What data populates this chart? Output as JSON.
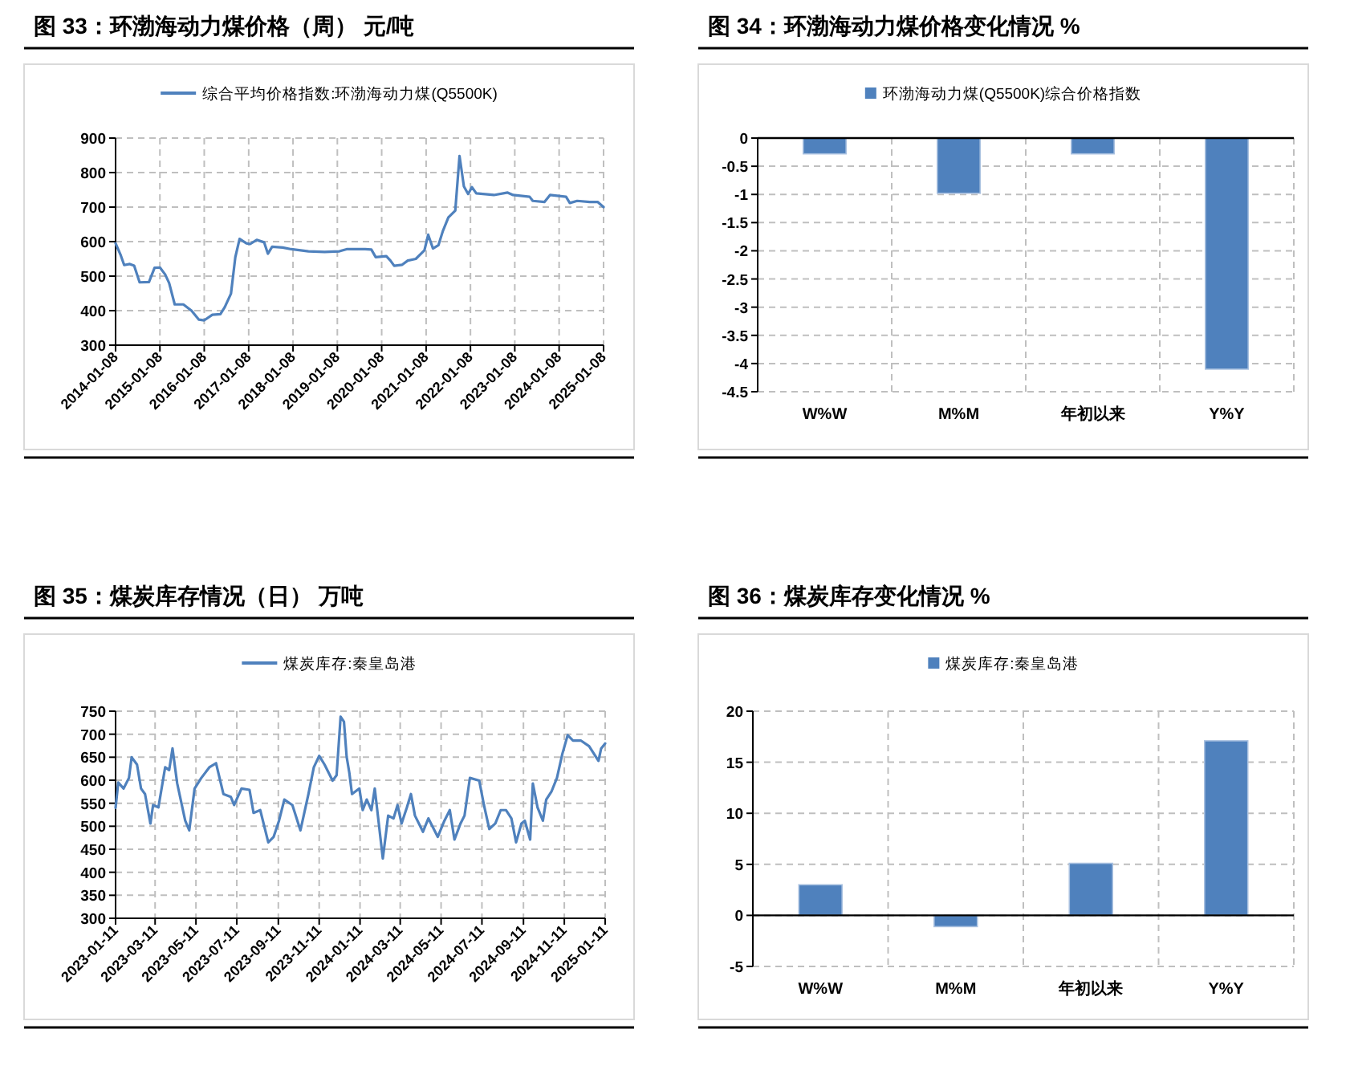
{
  "chart_data": [
    {
      "type": "line",
      "title": "图 33：环渤海动力煤价格（周） 元/吨",
      "legend": "top",
      "grid": true,
      "x": [
        "2014-01-08",
        "2014-02-20",
        "2014-03-20",
        "2014-05-05",
        "2014-06-10",
        "2014-07-25",
        "2014-10-10",
        "2014-11-25",
        "2015-01-08",
        "2015-02-20",
        "2015-03-25",
        "2015-05-10",
        "2015-07-20",
        "2015-09-25",
        "2015-11-25",
        "2016-01-08",
        "2016-03-15",
        "2016-05-20",
        "2016-06-25",
        "2016-08-15",
        "2016-09-20",
        "2016-10-25",
        "2016-12-20",
        "2017-01-20",
        "2017-03-15",
        "2017-05-15",
        "2017-06-15",
        "2017-07-20",
        "2017-10-15",
        "2017-12-25",
        "2018-05-15",
        "2018-09-25",
        "2019-01-25",
        "2019-03-25",
        "2019-08-25",
        "2019-10-15",
        "2019-11-20",
        "2020-02-15",
        "2020-03-20",
        "2020-04-20",
        "2020-06-25",
        "2020-08-10",
        "2020-10-15",
        "2020-12-25",
        "2021-01-25",
        "2021-03-05",
        "2021-04-20",
        "2021-05-25",
        "2021-07-10",
        "2021-09-05",
        "2021-10-10",
        "2021-11-15",
        "2021-12-20",
        "2022-01-20",
        "2022-02-25",
        "2022-07-20",
        "2022-11-10",
        "2022-12-25",
        "2023-05-10",
        "2023-06-05",
        "2023-09-10",
        "2023-10-25",
        "2024-03-05",
        "2024-04-05",
        "2024-06-05",
        "2024-09-15",
        "2024-11-20",
        "2025-01-08"
      ],
      "series": [
        {
          "name": "综合平均价格指数:环渤海动力煤(Q5500K)",
          "color": "#4f81bd",
          "values": [
            595,
            560,
            532,
            535,
            530,
            482,
            483,
            524,
            525,
            505,
            480,
            418,
            418,
            400,
            374,
            372,
            388,
            390,
            410,
            449,
            555,
            608,
            595,
            593,
            605,
            598,
            565,
            585,
            583,
            578,
            572,
            570,
            572,
            578,
            578,
            577,
            555,
            558,
            545,
            530,
            533,
            545,
            550,
            575,
            620,
            580,
            590,
            630,
            670,
            690,
            848,
            760,
            738,
            758,
            740,
            735,
            742,
            735,
            730,
            718,
            715,
            735,
            730,
            712,
            718,
            715,
            715,
            700
          ]
        }
      ],
      "xlim": [
        "2014-01-08",
        "2025-01-08"
      ],
      "xticks": [
        "2014-01-08",
        "2015-01-08",
        "2016-01-08",
        "2017-01-08",
        "2018-01-08",
        "2019-01-08",
        "2020-01-08",
        "2021-01-08",
        "2022-01-08",
        "2023-01-08",
        "2024-01-08",
        "2025-01-08"
      ],
      "ylim": [
        300,
        900
      ],
      "yticks": [
        300,
        400,
        500,
        600,
        700,
        800,
        900
      ]
    },
    {
      "type": "bar",
      "title": "图 34：环渤海动力煤价格变化情况 %",
      "legend": "top",
      "grid": true,
      "categories": [
        "W%W",
        "M%M",
        "年初以来",
        "Y%Y"
      ],
      "series": [
        {
          "name": "环渤海动力煤(Q5500K)综合价格指数",
          "color": "#4f81bd",
          "values": [
            -0.28,
            -0.98,
            -0.28,
            -4.1
          ]
        }
      ],
      "ylim": [
        -4.5,
        0
      ],
      "yticks": [
        -4.5,
        -4,
        -3.5,
        -3,
        -2.5,
        -2,
        -1.5,
        -1,
        -0.5,
        0
      ]
    },
    {
      "type": "line",
      "title": "图 35：煤炭库存情况（日） 万吨",
      "legend": "top",
      "grid": true,
      "x": [
        "2023-01-11",
        "2023-01-15",
        "2023-01-23",
        "2023-01-31",
        "2023-02-04",
        "2023-02-12",
        "2023-02-18",
        "2023-02-24",
        "2023-03-04",
        "2023-03-08",
        "2023-03-16",
        "2023-03-26",
        "2023-04-01",
        "2023-04-06",
        "2023-04-13",
        "2023-04-25",
        "2023-05-01",
        "2023-05-09",
        "2023-05-19",
        "2023-05-31",
        "2023-06-10",
        "2023-06-21",
        "2023-07-02",
        "2023-07-07",
        "2023-07-18",
        "2023-07-30",
        "2023-08-05",
        "2023-08-15",
        "2023-08-27",
        "2023-09-04",
        "2023-09-12",
        "2023-09-20",
        "2023-10-02",
        "2023-10-14",
        "2023-10-26",
        "2023-11-03",
        "2023-11-11",
        "2023-11-19",
        "2023-12-01",
        "2023-12-07",
        "2023-12-13",
        "2023-12-18",
        "2023-12-22",
        "2023-12-26",
        "2023-12-30",
        "2024-01-10",
        "2024-01-15",
        "2024-01-21",
        "2024-01-28",
        "2024-02-02",
        "2024-02-08",
        "2024-02-14",
        "2024-02-22",
        "2024-03-01",
        "2024-03-07",
        "2024-03-13",
        "2024-03-21",
        "2024-03-27",
        "2024-04-02",
        "2024-04-14",
        "2024-04-22",
        "2024-05-06",
        "2024-05-16",
        "2024-05-24",
        "2024-05-31",
        "2024-06-09",
        "2024-06-15",
        "2024-06-23",
        "2024-07-07",
        "2024-07-14",
        "2024-07-22",
        "2024-07-31",
        "2024-08-08",
        "2024-08-16",
        "2024-08-24",
        "2024-08-31",
        "2024-09-08",
        "2024-09-13",
        "2024-09-21",
        "2024-09-25",
        "2024-10-02",
        "2024-10-10",
        "2024-10-15",
        "2024-10-23",
        "2024-10-31",
        "2024-11-08",
        "2024-11-16",
        "2024-11-24",
        "2024-12-06",
        "2024-12-18",
        "2025-01-01",
        "2025-01-05",
        "2025-01-11"
      ],
      "series": [
        {
          "name": "煤炭库存:秦皇岛港",
          "color": "#4f81bd",
          "values": [
            540,
            595,
            582,
            605,
            650,
            634,
            582,
            570,
            506,
            546,
            541,
            628,
            622,
            669,
            593,
            512,
            491,
            582,
            605,
            628,
            637,
            570,
            564,
            546,
            582,
            579,
            529,
            535,
            465,
            477,
            512,
            558,
            546,
            491,
            570,
            628,
            653,
            634,
            599,
            611,
            738,
            727,
            651,
            616,
            570,
            582,
            535,
            558,
            535,
            582,
            506,
            430,
            523,
            517,
            546,
            506,
            541,
            570,
            523,
            488,
            517,
            477,
            512,
            535,
            471,
            506,
            523,
            605,
            599,
            546,
            494,
            506,
            535,
            535,
            517,
            465,
            506,
            512,
            471,
            593,
            541,
            512,
            558,
            576,
            605,
            657,
            698,
            686,
            686,
            674,
            642,
            669,
            680
          ]
        }
      ],
      "xlim": [
        "2023-01-11",
        "2025-01-11"
      ],
      "xticks": [
        "2023-01-11",
        "2023-03-11",
        "2023-05-11",
        "2023-07-11",
        "2023-09-11",
        "2023-11-11",
        "2024-01-11",
        "2024-03-11",
        "2024-05-11",
        "2024-07-11",
        "2024-09-11",
        "2024-11-11",
        "2025-01-11"
      ],
      "ylim": [
        300,
        750
      ],
      "yticks": [
        300,
        350,
        400,
        450,
        500,
        550,
        600,
        650,
        700,
        750
      ]
    },
    {
      "type": "bar",
      "title": "图 36：煤炭库存变化情况 %",
      "legend": "top",
      "grid": true,
      "categories": [
        "W%W",
        "M%M",
        "年初以来",
        "Y%Y"
      ],
      "series": [
        {
          "name": "煤炭库存:秦皇岛港",
          "color": "#4f81bd",
          "values": [
            3.0,
            -1.1,
            5.1,
            17.1
          ]
        }
      ],
      "ylim": [
        -5,
        20
      ],
      "yticks": [
        -5,
        0,
        5,
        10,
        15,
        20
      ]
    }
  ]
}
